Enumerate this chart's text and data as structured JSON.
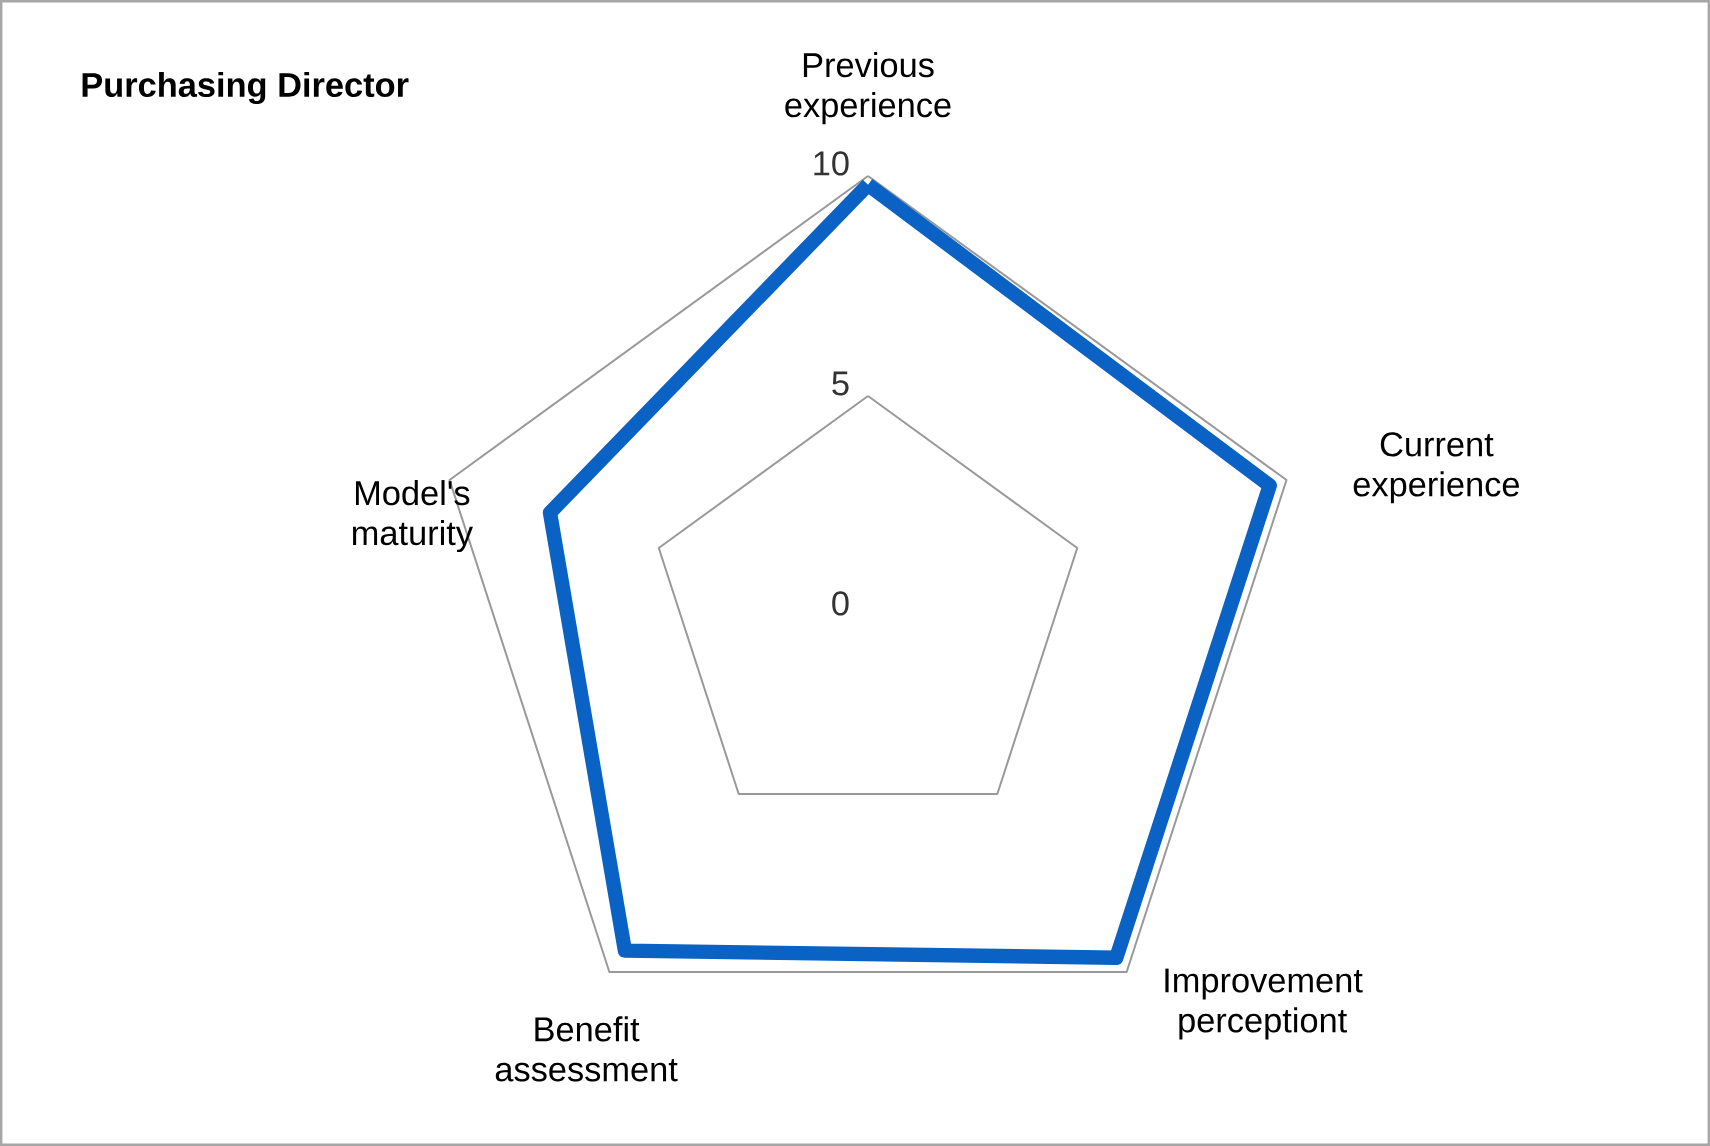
{
  "chart_data": {
    "type": "radar",
    "title": "Purchasing Director",
    "categories": [
      "Previous experience",
      "Current experience",
      "Improvement perceptiont",
      "Benefit assessment",
      "Model's maturity"
    ],
    "series": [
      {
        "color": "#0a62c4",
        "values": [
          9.8,
          9.6,
          9.6,
          9.4,
          7.6
        ]
      }
    ],
    "ylim": [
      0,
      10
    ],
    "yticks": [
      0,
      5,
      10
    ],
    "grid": true
  }
}
